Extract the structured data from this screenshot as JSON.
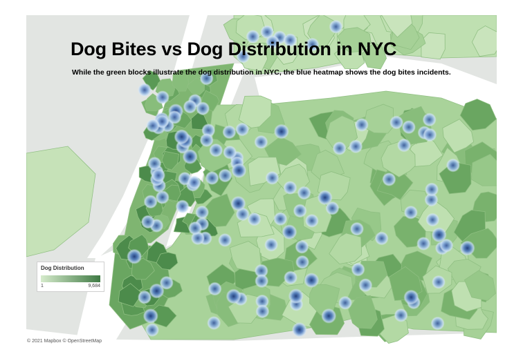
{
  "map": {
    "title": "Dog Bites vs Dog Distribution in NYC",
    "subtitle": "While the green blocks illustrate the dog distribution in NYC, the blue heatmap shows the dog bites incidents.",
    "legend": {
      "title": "Dog Distribution",
      "min": "1",
      "max": "9,684"
    },
    "attribution": "© 2021 Mapbox © OpenStreetMap",
    "colors": {
      "land": "#e2e5e2",
      "water": "#ffffff",
      "zone_light": "#c6e2b8",
      "zone_dark": "#3f7a44",
      "heat_center": "#3a5a9a",
      "heat_edge": "#bcd6ee"
    }
  }
}
